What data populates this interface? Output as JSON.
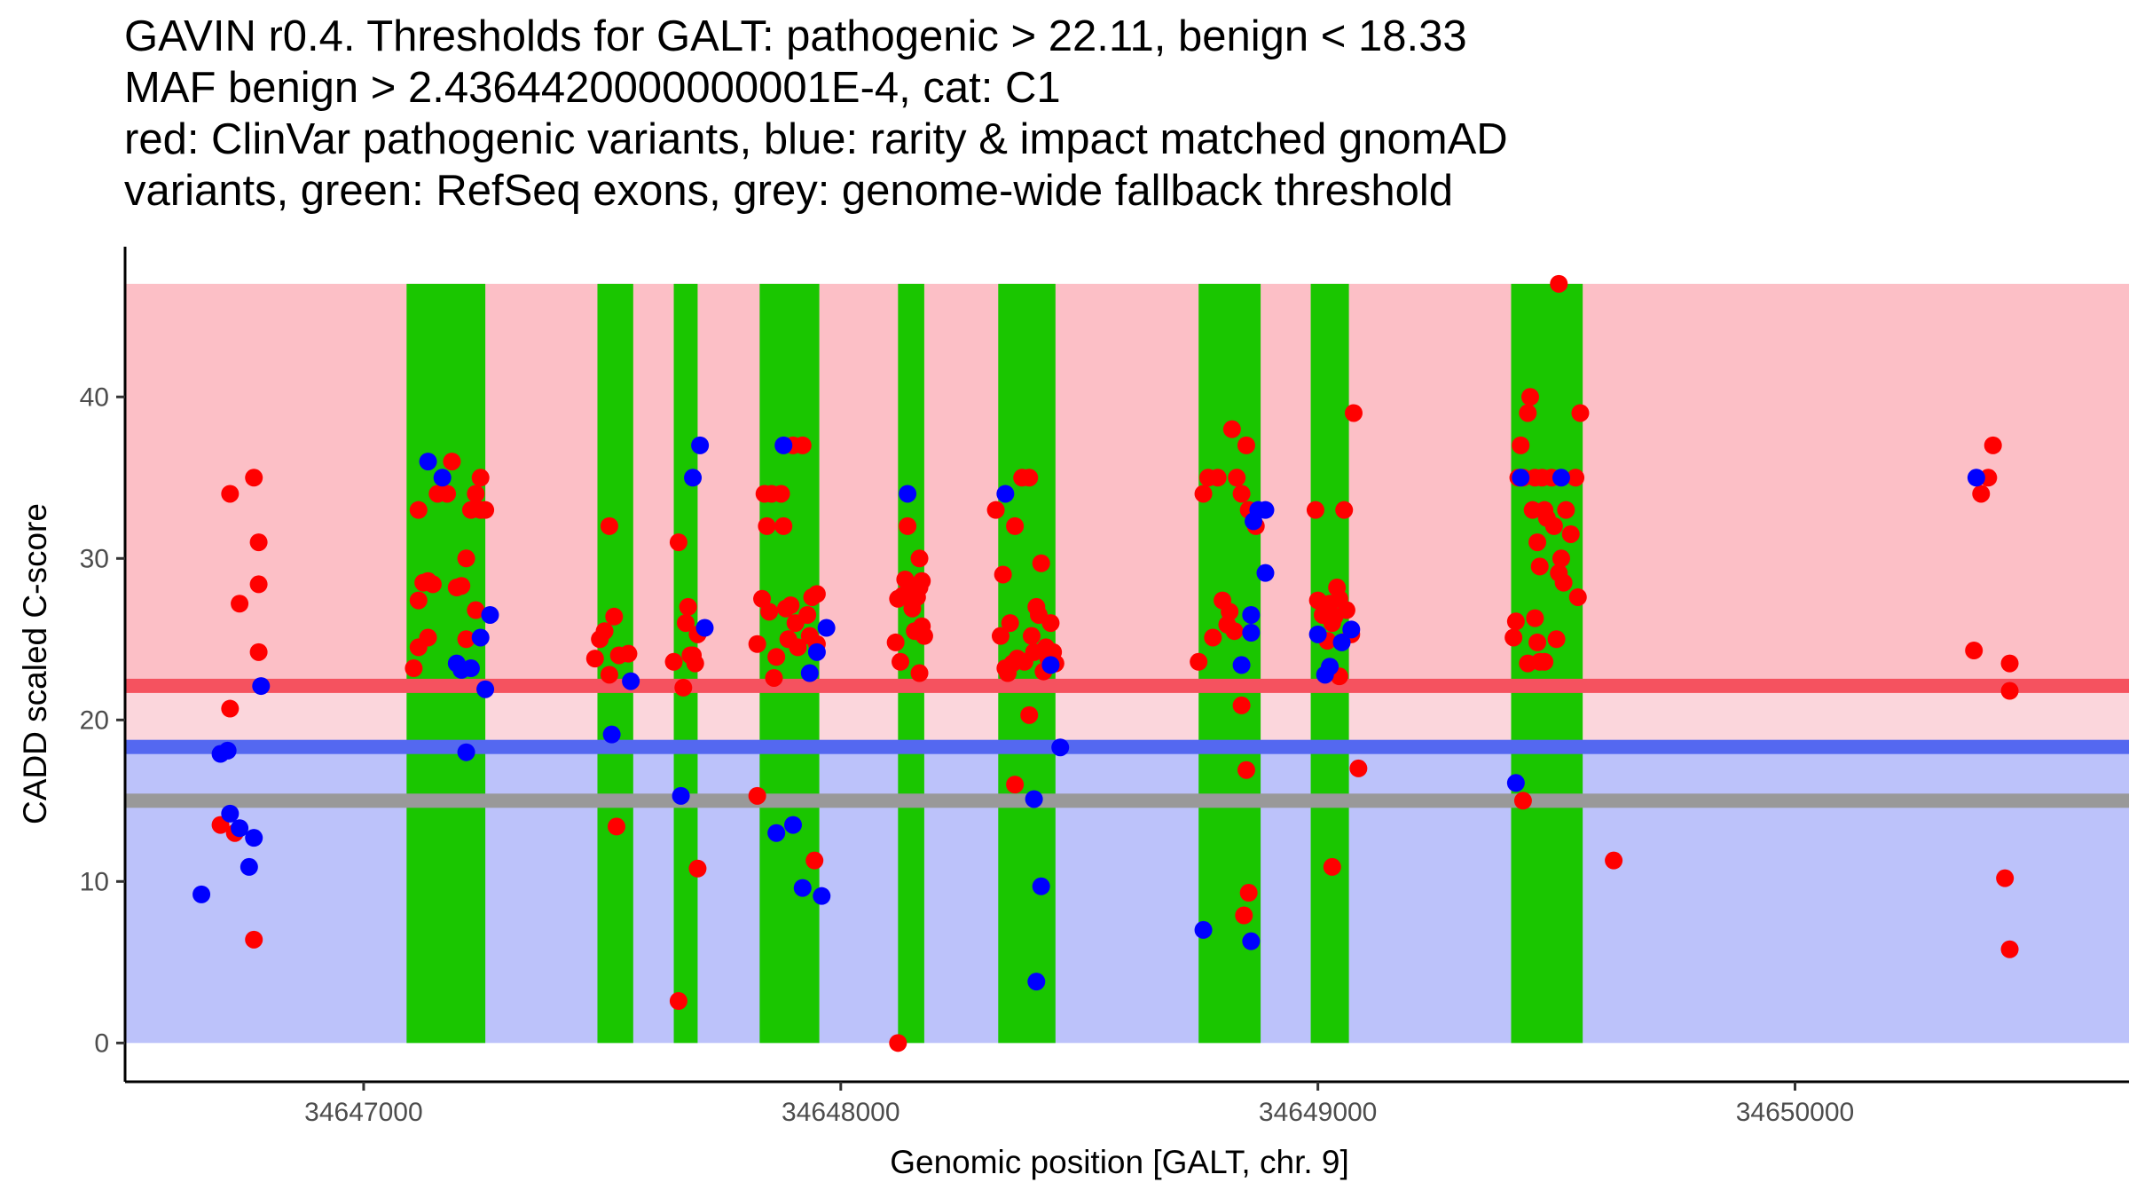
{
  "chart_data": {
    "type": "scatter",
    "title_lines": [
      "GAVIN r0.4. Thresholds for GALT: pathogenic > 22.11, benign < 18.33",
      "MAF benign > 2.4364420000000001E-4, cat: C1",
      "red: ClinVar pathogenic variants, blue: rarity & impact matched gnomAD",
      "variants, green: RefSeq exons, grey: genome-wide fallback threshold"
    ],
    "xlabel": "Genomic position [GALT, chr. 9]",
    "ylabel": "CADD scaled C-score",
    "xlim": [
      34646500,
      34650700
    ],
    "ylim": [
      -2.4,
      49.3
    ],
    "x_ticks": [
      {
        "value": 34647000,
        "label": "34647000"
      },
      {
        "value": 34648000,
        "label": "34648000"
      },
      {
        "value": 34649000,
        "label": "34649000"
      },
      {
        "value": 34650000,
        "label": "34650000"
      }
    ],
    "y_ticks": [
      {
        "value": 0,
        "label": "0"
      },
      {
        "value": 10,
        "label": "10"
      },
      {
        "value": 20,
        "label": "20"
      },
      {
        "value": 30,
        "label": "30"
      },
      {
        "value": 40,
        "label": "40"
      }
    ],
    "regions": {
      "x_start": 34646500,
      "x_end": 34650700,
      "benign_band": {
        "y0": 0,
        "y1": 18.33,
        "color": "#bcc2fa"
      },
      "middle_band": {
        "y0": 18.33,
        "y1": 22.11,
        "color": "#fbd6dc"
      },
      "pathogenic_band": {
        "y0": 22.11,
        "y1": 47,
        "color": "#fcbfc6"
      }
    },
    "threshold_lines": [
      {
        "name": "pathogenic",
        "y": 22.11,
        "color": "#f5525f"
      },
      {
        "name": "benign",
        "y": 18.33,
        "color": "#5468f0"
      },
      {
        "name": "genome-wide fallback",
        "y": 15,
        "color": "#999999"
      }
    ],
    "exons": [
      {
        "start": 34647090,
        "end": 34647255
      },
      {
        "start": 34647490,
        "end": 34647565
      },
      {
        "start": 34647650,
        "end": 34647700
      },
      {
        "start": 34647830,
        "end": 34647955
      },
      {
        "start": 34648120,
        "end": 34648175
      },
      {
        "start": 34648330,
        "end": 34648450
      },
      {
        "start": 34648750,
        "end": 34648880
      },
      {
        "start": 34648985,
        "end": 34649065
      },
      {
        "start": 34649405,
        "end": 34649555
      }
    ],
    "exon_color": "#1ac600",
    "exon_y_range": [
      0,
      47
    ],
    "series": [
      {
        "name": "ClinVar pathogenic variants",
        "color": "#ff0000",
        "points": [
          [
            34646720,
            34
          ],
          [
            34646770,
            35
          ],
          [
            34646780,
            31
          ],
          [
            34646780,
            28.4
          ],
          [
            34646780,
            24.2
          ],
          [
            34646740,
            27.2
          ],
          [
            34646720,
            20.7
          ],
          [
            34646700,
            13.5
          ],
          [
            34646730,
            13
          ],
          [
            34646770,
            6.4
          ],
          [
            34647105,
            23.2
          ],
          [
            34647115,
            27.4
          ],
          [
            34647125,
            28.5
          ],
          [
            34647115,
            24.5
          ],
          [
            34647135,
            28.6
          ],
          [
            34647145,
            28.4
          ],
          [
            34647155,
            34
          ],
          [
            34647175,
            34
          ],
          [
            34647185,
            36
          ],
          [
            34647195,
            28.2
          ],
          [
            34647205,
            28.3
          ],
          [
            34647215,
            30
          ],
          [
            34647225,
            33
          ],
          [
            34647235,
            34
          ],
          [
            34647245,
            33
          ],
          [
            34647245,
            35
          ],
          [
            34647255,
            33
          ],
          [
            34647235,
            26.8
          ],
          [
            34647215,
            25
          ],
          [
            34647135,
            25.1
          ],
          [
            34647115,
            33
          ],
          [
            34647485,
            23.8
          ],
          [
            34647495,
            25
          ],
          [
            34647505,
            25.5
          ],
          [
            34647515,
            22.8
          ],
          [
            34647525,
            26.4
          ],
          [
            34647535,
            24
          ],
          [
            34647555,
            24.1
          ],
          [
            34647515,
            32
          ],
          [
            34647530,
            13.4
          ],
          [
            34647650,
            23.6
          ],
          [
            34647660,
            31
          ],
          [
            34647670,
            22
          ],
          [
            34647675,
            26
          ],
          [
            34647680,
            27
          ],
          [
            34647685,
            24
          ],
          [
            34647690,
            24
          ],
          [
            34647695,
            23.5
          ],
          [
            34647700,
            25.3
          ],
          [
            34647660,
            2.6
          ],
          [
            34647700,
            10.8
          ],
          [
            34647825,
            24.7
          ],
          [
            34647835,
            27.5
          ],
          [
            34647840,
            34
          ],
          [
            34647845,
            32
          ],
          [
            34647850,
            26.7
          ],
          [
            34647855,
            34
          ],
          [
            34647860,
            22.6
          ],
          [
            34647865,
            23.9
          ],
          [
            34647875,
            34
          ],
          [
            34647880,
            32
          ],
          [
            34647885,
            26.9
          ],
          [
            34647890,
            25
          ],
          [
            34647895,
            27.1
          ],
          [
            34647900,
            37
          ],
          [
            34647905,
            26
          ],
          [
            34647910,
            24.5
          ],
          [
            34647920,
            37
          ],
          [
            34647930,
            26.5
          ],
          [
            34647935,
            25.2
          ],
          [
            34647940,
            27.6
          ],
          [
            34647950,
            27.8
          ],
          [
            34647950,
            24.7
          ],
          [
            34647825,
            15.3
          ],
          [
            34647945,
            11.3
          ],
          [
            34648115,
            24.8
          ],
          [
            34648120,
            27.5
          ],
          [
            34648125,
            23.6
          ],
          [
            34648130,
            27.7
          ],
          [
            34648135,
            28.7
          ],
          [
            34648140,
            32
          ],
          [
            34648145,
            27.8
          ],
          [
            34648150,
            26.9
          ],
          [
            34648155,
            25.5
          ],
          [
            34648160,
            27.6
          ],
          [
            34648165,
            28.2
          ],
          [
            34648170,
            25.8
          ],
          [
            34648175,
            25.2
          ],
          [
            34648165,
            22.9
          ],
          [
            34648165,
            30
          ],
          [
            34648170,
            28.6
          ],
          [
            34648120,
            0
          ],
          [
            34648325,
            33
          ],
          [
            34648335,
            25.2
          ],
          [
            34648340,
            29
          ],
          [
            34648345,
            23.2
          ],
          [
            34648350,
            22.9
          ],
          [
            34648355,
            26
          ],
          [
            34648360,
            23.5
          ],
          [
            34648365,
            32
          ],
          [
            34648370,
            23.8
          ],
          [
            34648380,
            35
          ],
          [
            34648385,
            23.6
          ],
          [
            34648395,
            35
          ],
          [
            34648400,
            25.2
          ],
          [
            34648405,
            24.2
          ],
          [
            34648410,
            27
          ],
          [
            34648415,
            26.5
          ],
          [
            34648420,
            29.7
          ],
          [
            34648425,
            23
          ],
          [
            34648430,
            24.5
          ],
          [
            34648435,
            23.8
          ],
          [
            34648440,
            26
          ],
          [
            34648445,
            24.2
          ],
          [
            34648450,
            23.5
          ],
          [
            34648365,
            16
          ],
          [
            34648395,
            20.3
          ],
          [
            34648750,
            23.6
          ],
          [
            34648760,
            34
          ],
          [
            34648770,
            35
          ],
          [
            34648780,
            25.1
          ],
          [
            34648790,
            35
          ],
          [
            34648800,
            27.4
          ],
          [
            34648810,
            25.9
          ],
          [
            34648815,
            26.7
          ],
          [
            34648820,
            38
          ],
          [
            34648825,
            25.5
          ],
          [
            34648830,
            35
          ],
          [
            34648840,
            34
          ],
          [
            34648850,
            37
          ],
          [
            34648855,
            33
          ],
          [
            34648870,
            32
          ],
          [
            34648840,
            20.9
          ],
          [
            34648850,
            16.9
          ],
          [
            34648855,
            9.3
          ],
          [
            34648845,
            7.9
          ],
          [
            34648995,
            33
          ],
          [
            34649000,
            27.4
          ],
          [
            34649010,
            26.5
          ],
          [
            34649015,
            27
          ],
          [
            34649020,
            24.9
          ],
          [
            34649025,
            27.2
          ],
          [
            34649030,
            26
          ],
          [
            34649035,
            26.4
          ],
          [
            34649040,
            28.2
          ],
          [
            34649045,
            27.5
          ],
          [
            34649055,
            33
          ],
          [
            34649060,
            26.8
          ],
          [
            34649070,
            25.3
          ],
          [
            34649075,
            39
          ],
          [
            34649045,
            22.7
          ],
          [
            34649085,
            17
          ],
          [
            34649030,
            10.9
          ],
          [
            34649410,
            25.1
          ],
          [
            34649415,
            26.1
          ],
          [
            34649420,
            35
          ],
          [
            34649425,
            37
          ],
          [
            34649430,
            35
          ],
          [
            34649440,
            39
          ],
          [
            34649445,
            40
          ],
          [
            34649450,
            33
          ],
          [
            34649455,
            35
          ],
          [
            34649460,
            31
          ],
          [
            34649465,
            29.5
          ],
          [
            34649470,
            35
          ],
          [
            34649475,
            33
          ],
          [
            34649480,
            32.5
          ],
          [
            34649490,
            35
          ],
          [
            34649495,
            32
          ],
          [
            34649500,
            25
          ],
          [
            34649505,
            29.1
          ],
          [
            34649510,
            30
          ],
          [
            34649515,
            28.5
          ],
          [
            34649520,
            33
          ],
          [
            34649530,
            31.5
          ],
          [
            34649540,
            35
          ],
          [
            34649545,
            27.6
          ],
          [
            34649550,
            39
          ],
          [
            34649455,
            26.3
          ],
          [
            34649460,
            24.8
          ],
          [
            34649465,
            23.6
          ],
          [
            34649440,
            23.5
          ],
          [
            34649475,
            23.6
          ],
          [
            34649430,
            15
          ],
          [
            34649505,
            47
          ],
          [
            34649620,
            11.3
          ],
          [
            34650390,
            34
          ],
          [
            34650405,
            35
          ],
          [
            34650415,
            37
          ],
          [
            34650375,
            24.3
          ],
          [
            34650450,
            23.5
          ],
          [
            34650450,
            21.8
          ],
          [
            34650440,
            10.2
          ],
          [
            34650450,
            5.8
          ]
        ]
      },
      {
        "name": "rarity & impact matched gnomAD variants",
        "color": "#0000ff",
        "points": [
          [
            34646660,
            9.2
          ],
          [
            34646700,
            17.9
          ],
          [
            34646715,
            18.1
          ],
          [
            34646720,
            14.2
          ],
          [
            34646740,
            13.3
          ],
          [
            34646760,
            10.9
          ],
          [
            34646770,
            12.7
          ],
          [
            34646785,
            22.1
          ],
          [
            34647135,
            36
          ],
          [
            34647165,
            35
          ],
          [
            34647195,
            23.5
          ],
          [
            34647205,
            23.1
          ],
          [
            34647215,
            18
          ],
          [
            34647225,
            23.2
          ],
          [
            34647245,
            25.1
          ],
          [
            34647255,
            21.9
          ],
          [
            34647265,
            26.5
          ],
          [
            34647520,
            19.1
          ],
          [
            34647560,
            22.4
          ],
          [
            34647665,
            15.3
          ],
          [
            34647690,
            35
          ],
          [
            34647705,
            37
          ],
          [
            34647715,
            25.7
          ],
          [
            34647865,
            13
          ],
          [
            34647900,
            13.5
          ],
          [
            34647880,
            37
          ],
          [
            34647920,
            9.6
          ],
          [
            34647935,
            22.9
          ],
          [
            34647950,
            24.2
          ],
          [
            34647960,
            9.1
          ],
          [
            34647970,
            25.7
          ],
          [
            34648140,
            34
          ],
          [
            34648345,
            34
          ],
          [
            34648405,
            15.1
          ],
          [
            34648410,
            3.8
          ],
          [
            34648420,
            9.7
          ],
          [
            34648440,
            23.4
          ],
          [
            34648460,
            18.3
          ],
          [
            34648760,
            7
          ],
          [
            34648840,
            23.4
          ],
          [
            34648860,
            6.3
          ],
          [
            34648860,
            26.5
          ],
          [
            34648860,
            25.4
          ],
          [
            34648865,
            32.3
          ],
          [
            34648875,
            33
          ],
          [
            34648890,
            33
          ],
          [
            34648890,
            29.1
          ],
          [
            34649000,
            25.3
          ],
          [
            34649015,
            22.8
          ],
          [
            34649025,
            23.3
          ],
          [
            34649050,
            24.8
          ],
          [
            34649070,
            25.6
          ],
          [
            34649415,
            16.1
          ],
          [
            34649425,
            35
          ],
          [
            34649510,
            35
          ],
          [
            34650380,
            35
          ]
        ]
      }
    ]
  }
}
